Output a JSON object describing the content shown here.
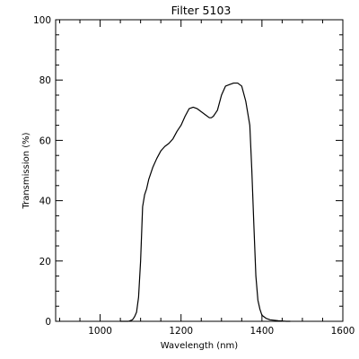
{
  "chart_data": {
    "type": "line",
    "title": "Filter 5103",
    "xlabel": "Wavelength (nm)",
    "ylabel": "Transmission (%)",
    "xlim": [
      890,
      1600
    ],
    "ylim": [
      0,
      100
    ],
    "x_ticks": [
      1000,
      1200,
      1400,
      1600
    ],
    "y_ticks": [
      0,
      20,
      40,
      60,
      80,
      100
    ],
    "grid": false,
    "series": [
      {
        "x": [
          1050,
          1070,
          1080,
          1085,
          1090,
          1095,
          1100,
          1105,
          1110,
          1115,
          1120,
          1130,
          1140,
          1150,
          1160,
          1170,
          1180,
          1190,
          1200,
          1210,
          1220,
          1230,
          1240,
          1250,
          1260,
          1270,
          1275,
          1280,
          1290,
          1300,
          1310,
          1320,
          1330,
          1340,
          1350,
          1360,
          1370,
          1375,
          1380,
          1385,
          1390,
          1395,
          1400,
          1410,
          1420,
          1440,
          1460,
          1470
        ],
        "y": [
          0,
          0,
          0.5,
          1.5,
          3,
          8,
          20,
          38,
          42,
          44,
          47,
          51,
          54,
          56.5,
          58,
          59,
          60.5,
          63,
          65,
          68,
          70.5,
          71,
          70.5,
          69.5,
          68.5,
          67.5,
          67.5,
          68,
          70,
          75,
          78,
          78.5,
          79,
          79,
          78,
          73,
          65,
          50,
          32,
          15,
          7,
          4,
          2,
          1,
          0.5,
          0.2,
          0,
          0
        ]
      }
    ]
  }
}
